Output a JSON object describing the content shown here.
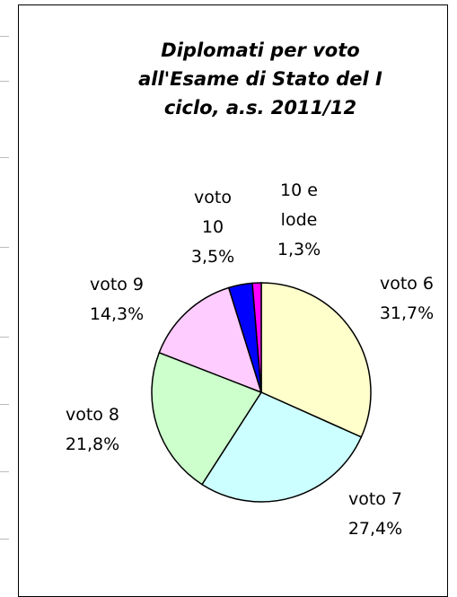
{
  "chart_data": {
    "type": "pie",
    "title": "Diplomati per voto all'Esame di Stato del I ciclo, a.s. 2011/12",
    "categories": [
      "voto 6",
      "voto 7",
      "voto 8",
      "voto 9",
      "voto 10",
      "10 e lode"
    ],
    "values": [
      31.7,
      27.4,
      21.8,
      14.3,
      3.5,
      1.3
    ],
    "value_labels": [
      "31,7%",
      "27,4%",
      "21,8%",
      "14,3%",
      "3,5%",
      "1,3%"
    ],
    "colors": [
      "#ffffcc",
      "#ccffff",
      "#ccffcc",
      "#ffccff",
      "#0000ff",
      "#ff00ff"
    ]
  }
}
